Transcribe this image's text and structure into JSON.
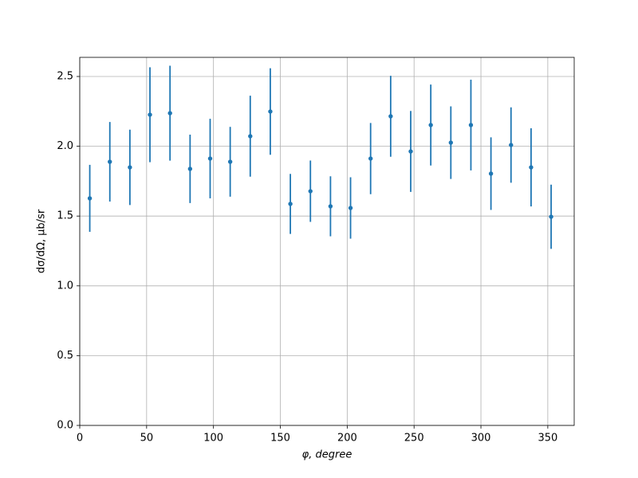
{
  "chart_data": {
    "type": "scatter",
    "x_label": "φ, degree",
    "y_label": "dσ/dΩ, μb/sr",
    "x": [
      7.5,
      22.5,
      37.5,
      52.5,
      67.5,
      82.5,
      97.5,
      112.5,
      127.5,
      142.5,
      157.5,
      172.5,
      187.5,
      202.5,
      217.5,
      232.5,
      247.5,
      262.5,
      277.5,
      292.5,
      307.5,
      322.5,
      337.5,
      352.5
    ],
    "values": [
      1.627,
      1.889,
      1.849,
      2.226,
      2.237,
      1.838,
      1.912,
      1.889,
      2.072,
      2.249,
      1.587,
      1.678,
      1.57,
      1.558,
      1.912,
      2.215,
      1.963,
      2.152,
      2.026,
      2.152,
      1.804,
      2.009,
      1.849,
      1.495
    ],
    "errors": [
      0.24,
      0.285,
      0.27,
      0.34,
      0.34,
      0.245,
      0.285,
      0.25,
      0.29,
      0.31,
      0.215,
      0.22,
      0.215,
      0.22,
      0.255,
      0.29,
      0.29,
      0.29,
      0.26,
      0.325,
      0.26,
      0.27,
      0.28,
      0.23
    ],
    "color": "#1f77b4",
    "xlim": [
      0,
      369.75
    ],
    "ylim": [
      0,
      2.637
    ],
    "xticks": [
      0,
      50,
      100,
      150,
      200,
      250,
      300,
      350
    ],
    "yticks": [
      {
        "value": 0,
        "label": "0.0"
      },
      0.5,
      {
        "value": 1,
        "label": "1.0"
      },
      1.5,
      {
        "value": 2,
        "label": "2.0"
      },
      2.5
    ],
    "grid": true
  }
}
